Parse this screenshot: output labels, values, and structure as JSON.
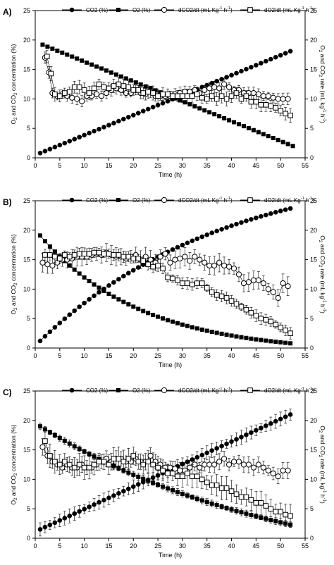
{
  "legend": {
    "co2": "CO2 (%)",
    "o2": "O2 (%)",
    "dco2": "dCO2/dt (mL Kg",
    "do2": "dO2/dt (mL Kg",
    "unit_tail": " h",
    "close": ")",
    "sup": "-1"
  },
  "axes": {
    "xlabel": "Time (h)",
    "ylabel_left_parts": [
      "O",
      "2",
      " and CO",
      "2",
      " concentration (%)"
    ],
    "ylabel_right_parts": [
      "O",
      "2",
      " and CO",
      "2",
      " rate (mL kg",
      "-1",
      " h",
      "-1",
      ")"
    ]
  },
  "chart_data": [
    {
      "type": "scatter",
      "panel_label": "A)",
      "xlim": [
        0,
        55
      ],
      "ylim": [
        0,
        25
      ],
      "y2lim": [
        0,
        25
      ],
      "xticks": [
        0,
        5,
        10,
        15,
        20,
        25,
        30,
        35,
        40,
        45,
        50,
        55
      ],
      "yticks": [
        0,
        5,
        10,
        15,
        20,
        25
      ],
      "series": [
        {
          "name": "CO2 (%)",
          "axis": "left",
          "marker": "filled-circle",
          "x_start": 1,
          "x_end": 52,
          "y_start": 0.8,
          "y_end": 18.1,
          "curve": "linear",
          "err": 0
        },
        {
          "name": "O2 (%)",
          "axis": "left",
          "marker": "filled-square",
          "x_start": 1.5,
          "x_end": 52,
          "y_start": 19.2,
          "y_end": 2.0,
          "curve": "linear",
          "err": 0
        },
        {
          "name": "dCO2/dt",
          "axis": "right",
          "marker": "open-circle",
          "x": [
            2,
            2.8,
            3.5,
            4.5,
            5.5,
            6.5,
            7.5,
            8.5,
            9.5,
            10.5,
            11.5,
            12.5,
            13.5,
            14.5,
            15.5,
            16.5,
            17.5,
            18.5,
            19.5,
            20.5,
            21.5,
            22.5,
            23.5,
            24.5,
            25.5,
            26.5,
            27.5,
            28.5,
            29.5,
            30.5,
            31.5,
            32.5,
            33.5,
            34.5,
            35.5,
            36.5,
            37.5,
            38.5,
            39.5,
            40.5,
            41.5,
            42.5,
            43.5,
            44.5,
            45.5,
            46.5,
            47.5,
            48.5,
            49.5,
            50.5,
            51.5
          ],
          "y": [
            17.0,
            14.5,
            11.0,
            10.5,
            10.8,
            10.5,
            10.2,
            10.0,
            9.6,
            10.5,
            10.5,
            10.8,
            10.5,
            11.0,
            11.5,
            11.8,
            11.5,
            11.0,
            11.0,
            11.5,
            11.0,
            10.8,
            11.2,
            10.5,
            10.5,
            10.5,
            10.5,
            10.8,
            11.0,
            11.2,
            11.2,
            11.5,
            11.0,
            11.5,
            11.8,
            12.0,
            11.8,
            12.5,
            12.0,
            11.5,
            11.5,
            11.0,
            11.0,
            11.0,
            10.8,
            10.5,
            10.5,
            10.2,
            10.0,
            10.0,
            10.0
          ],
          "err": 1.0
        },
        {
          "name": "dO2/dt",
          "axis": "right",
          "marker": "open-square",
          "x": [
            2.4,
            3.2,
            4,
            5,
            6,
            7,
            8,
            9,
            10,
            11,
            12,
            13,
            14,
            15,
            16,
            17,
            18,
            19,
            20,
            21,
            22,
            23,
            24,
            25,
            26,
            27,
            28,
            29,
            30,
            31,
            32,
            33,
            34,
            35,
            36,
            37,
            38,
            39,
            40,
            41,
            42,
            43,
            44,
            45,
            46,
            47,
            48,
            49,
            50,
            51,
            52
          ],
          "y": [
            17.2,
            14.3,
            10.8,
            10.5,
            11.0,
            11.2,
            12.0,
            12.0,
            11.5,
            11.0,
            11.8,
            12.5,
            12.0,
            11.8,
            12.2,
            12.5,
            12.2,
            12.0,
            11.5,
            11.5,
            11.0,
            11.2,
            11.0,
            10.5,
            10.8,
            10.8,
            10.5,
            10.5,
            10.5,
            10.5,
            10.5,
            10.8,
            10.2,
            10.0,
            10.5,
            10.0,
            10.5,
            10.0,
            10.5,
            11.0,
            10.0,
            10.5,
            9.5,
            9.5,
            9.0,
            9.0,
            8.8,
            8.5,
            8.0,
            7.5,
            7.2
          ],
          "err": 1.2
        }
      ]
    },
    {
      "type": "scatter",
      "panel_label": "B)",
      "xlim": [
        0,
        55
      ],
      "ylim": [
        0,
        25
      ],
      "y2lim": [
        0,
        25
      ],
      "xticks": [
        0,
        5,
        10,
        15,
        20,
        25,
        30,
        35,
        40,
        45,
        50,
        55
      ],
      "yticks": [
        0,
        5,
        10,
        15,
        20,
        25
      ],
      "series": [
        {
          "name": "CO2 (%)",
          "axis": "left",
          "marker": "filled-circle",
          "x_start": 1,
          "x_end": 52,
          "y_start": 1.2,
          "y_end": 23.7,
          "curve": "sat",
          "curve_k": 0.45,
          "err": 0
        },
        {
          "name": "O2 (%)",
          "axis": "left",
          "marker": "filled-square",
          "x_start": 1,
          "x_end": 52,
          "y_start": 19.1,
          "y_end": 0.8,
          "curve": "decay",
          "curve_k": 2.5,
          "err": 0
        },
        {
          "name": "dCO2/dt",
          "axis": "right",
          "marker": "open-circle",
          "x": [
            1.5,
            2.5,
            3.5,
            4.5,
            5.5,
            6.5,
            7.5,
            8.5,
            9.5,
            10.5,
            11.5,
            12.5,
            13.5,
            14.5,
            15.5,
            16.5,
            17.5,
            18.5,
            19.5,
            20.5,
            21.5,
            22.5,
            23.5,
            24.5,
            25.5,
            26.5,
            27.5,
            28.5,
            29.5,
            30.5,
            31.5,
            32.5,
            33.5,
            34.5,
            35.5,
            36.5,
            37.5,
            38.5,
            39.5,
            40.5,
            41.5,
            42.5,
            43.5,
            44.5,
            45.5,
            46.5,
            47.5,
            48.5,
            49.5,
            50.5,
            51.5
          ],
          "y": [
            14.5,
            14.2,
            14.0,
            14.5,
            15.0,
            15.0,
            15.2,
            15.5,
            15.5,
            15.5,
            15.8,
            16.0,
            15.8,
            16.2,
            15.8,
            15.5,
            15.5,
            15.2,
            15.5,
            15.8,
            15.0,
            15.5,
            15.0,
            14.5,
            15.5,
            16.0,
            14.5,
            15.0,
            15.2,
            15.5,
            14.8,
            15.5,
            15.0,
            14.5,
            14.0,
            14.0,
            14.5,
            14.0,
            13.8,
            13.5,
            12.5,
            11.0,
            11.2,
            11.5,
            11.5,
            11.0,
            10.0,
            9.5,
            8.5,
            11.0,
            10.5
          ],
          "err": 1.6
        },
        {
          "name": "dO2/dt",
          "axis": "right",
          "marker": "open-square",
          "x": [
            2,
            3,
            4,
            5,
            6,
            7,
            8,
            9,
            10,
            11,
            12,
            13,
            14,
            15,
            16,
            17,
            18,
            19,
            20,
            21,
            22,
            23,
            24,
            25,
            26,
            27,
            28,
            29,
            30,
            31,
            32,
            33,
            34,
            35,
            36,
            37,
            38,
            39,
            40,
            41,
            42,
            43,
            44,
            45,
            46,
            47,
            48,
            49,
            50,
            51,
            52
          ],
          "y": [
            15.8,
            15.8,
            15.5,
            15.2,
            15.8,
            15.5,
            15.8,
            16.0,
            16.0,
            16.0,
            16.2,
            16.2,
            16.0,
            16.0,
            15.8,
            15.8,
            15.5,
            15.5,
            15.2,
            15.2,
            14.8,
            14.2,
            13.8,
            14.0,
            13.5,
            12.0,
            11.8,
            11.5,
            11.0,
            11.0,
            10.8,
            11.0,
            11.0,
            10.2,
            9.5,
            9.0,
            8.8,
            8.5,
            8.0,
            7.5,
            7.0,
            6.5,
            6.0,
            5.5,
            5.0,
            4.8,
            4.5,
            4.0,
            3.5,
            3.0,
            2.5
          ],
          "err": 1.0
        }
      ]
    },
    {
      "type": "scatter",
      "panel_label": "C)",
      "xlim": [
        0,
        55
      ],
      "ylim": [
        0,
        25
      ],
      "y2lim": [
        0,
        25
      ],
      "xticks": [
        0,
        5,
        10,
        15,
        20,
        25,
        30,
        35,
        40,
        45,
        50,
        55
      ],
      "yticks": [
        0,
        5,
        10,
        15,
        20,
        25
      ],
      "series": [
        {
          "name": "CO2 (%)",
          "axis": "left",
          "marker": "filled-circle",
          "x_start": 1,
          "x_end": 52,
          "y_start": 1.5,
          "y_end": 21.0,
          "curve": "linear",
          "err": 1.2
        },
        {
          "name": "O2 (%)",
          "axis": "left",
          "marker": "filled-square",
          "x_start": 1,
          "x_end": 52,
          "y_start": 19.0,
          "y_end": 2.3,
          "curve": "decay",
          "curve_k": 1.0,
          "err": 0.6
        },
        {
          "name": "dCO2/dt",
          "axis": "right",
          "marker": "open-circle",
          "x": [
            1.5,
            2.5,
            3.5,
            4.5,
            5.5,
            6.5,
            7.5,
            8.5,
            9.5,
            10.5,
            11.5,
            12.5,
            13.5,
            14.5,
            15.5,
            16.5,
            17.5,
            18.5,
            19.5,
            20.5,
            21.5,
            22.5,
            23.5,
            24.5,
            25.5,
            26.5,
            27.5,
            28.5,
            29.5,
            30.5,
            31.5,
            32.5,
            33.5,
            34.5,
            35.5,
            36.5,
            37.5,
            38.5,
            39.5,
            40.5,
            41.5,
            42.5,
            43.5,
            44.5,
            45.5,
            46.5,
            47.5,
            48.5,
            49.5,
            50.5,
            51.5
          ],
          "y": [
            15.5,
            14.0,
            13.0,
            12.5,
            12.0,
            12.5,
            12.0,
            12.0,
            12.5,
            12.0,
            12.0,
            12.5,
            13.0,
            13.5,
            13.0,
            13.5,
            13.5,
            13.0,
            13.0,
            13.5,
            13.0,
            13.0,
            14.0,
            13.0,
            12.5,
            12.0,
            12.0,
            11.8,
            11.5,
            11.5,
            12.0,
            12.5,
            12.0,
            12.5,
            12.5,
            12.5,
            13.0,
            13.5,
            12.5,
            13.0,
            13.0,
            12.5,
            12.5,
            12.0,
            12.5,
            12.0,
            11.5,
            11.0,
            10.5,
            11.5,
            11.5
          ],
          "err": 1.4
        },
        {
          "name": "dO2/dt",
          "axis": "right",
          "marker": "open-square",
          "x": [
            2,
            3,
            4,
            5,
            6,
            7,
            8,
            9,
            10,
            11,
            12,
            13,
            14,
            15,
            16,
            17,
            18,
            19,
            20,
            21,
            22,
            23,
            24,
            25,
            26,
            27,
            28,
            29,
            30,
            31,
            32,
            33,
            34,
            35,
            36,
            37,
            38,
            39,
            40,
            41,
            42,
            43,
            44,
            45,
            46,
            47,
            48,
            49,
            50,
            51,
            52
          ],
          "y": [
            16.5,
            14.0,
            13.0,
            12.5,
            13.0,
            12.5,
            12.0,
            12.5,
            12.0,
            12.0,
            12.5,
            13.0,
            13.0,
            12.5,
            13.5,
            13.5,
            13.0,
            13.5,
            14.0,
            13.0,
            12.5,
            13.0,
            12.5,
            12.0,
            11.5,
            11.0,
            11.0,
            10.5,
            10.5,
            11.0,
            10.5,
            10.5,
            10.0,
            9.5,
            9.0,
            9.0,
            8.5,
            8.5,
            8.0,
            7.5,
            7.0,
            7.0,
            6.5,
            6.0,
            6.0,
            5.5,
            5.0,
            4.5,
            4.5,
            4.0,
            3.8
          ],
          "err": 2.0
        }
      ]
    }
  ]
}
